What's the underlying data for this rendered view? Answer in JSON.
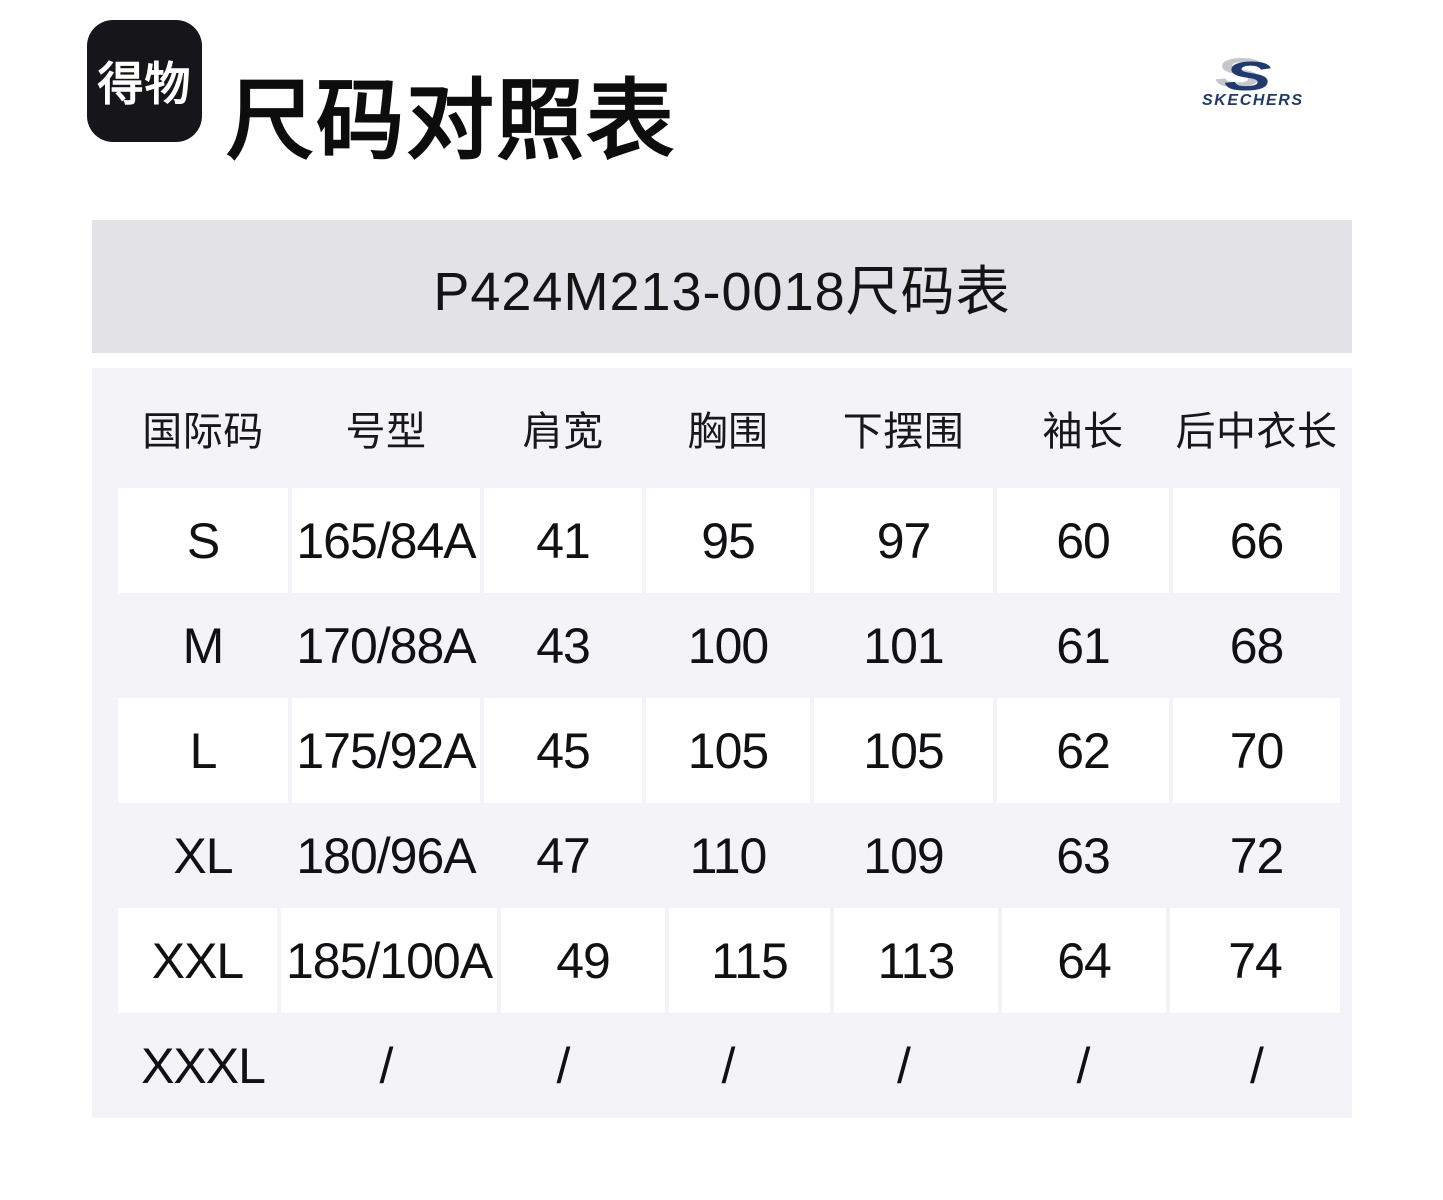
{
  "brand": {
    "dewu_logo_text": "得物",
    "page_title": "尺码对照表",
    "skechers_s": "S",
    "skechers_wordmark": "SKECHERS"
  },
  "size_chart": {
    "title": "P424M213-0018尺码表",
    "columns": [
      "国际码",
      "号型",
      "肩宽",
      "胸围",
      "下摆围",
      "袖长",
      "后中衣长"
    ],
    "rows": [
      [
        "S",
        "165/84A",
        "41",
        "95",
        "97",
        "60",
        "66"
      ],
      [
        "M",
        "170/88A",
        "43",
        "100",
        "101",
        "61",
        "68"
      ],
      [
        "L",
        "175/92A",
        "45",
        "105",
        "105",
        "62",
        "70"
      ],
      [
        "XL",
        "180/96A",
        "47",
        "110",
        "109",
        "63",
        "72"
      ],
      [
        "XXL",
        "185/100A",
        "49",
        "115",
        "113",
        "64",
        "74"
      ],
      [
        "XXXL",
        "/",
        "/",
        "/",
        "/",
        "/",
        "/"
      ]
    ]
  },
  "colors": {
    "page_bg": "#ffffff",
    "title_bar_bg": "#e3e2e7",
    "table_bg": "#f3f3f8",
    "cell_bg": "#ffffff",
    "text": "#121212",
    "dewu_logo_bg": "#16161a",
    "skechers_navy": "#1e3a70",
    "skechers_gray": "#c5c7cb"
  }
}
